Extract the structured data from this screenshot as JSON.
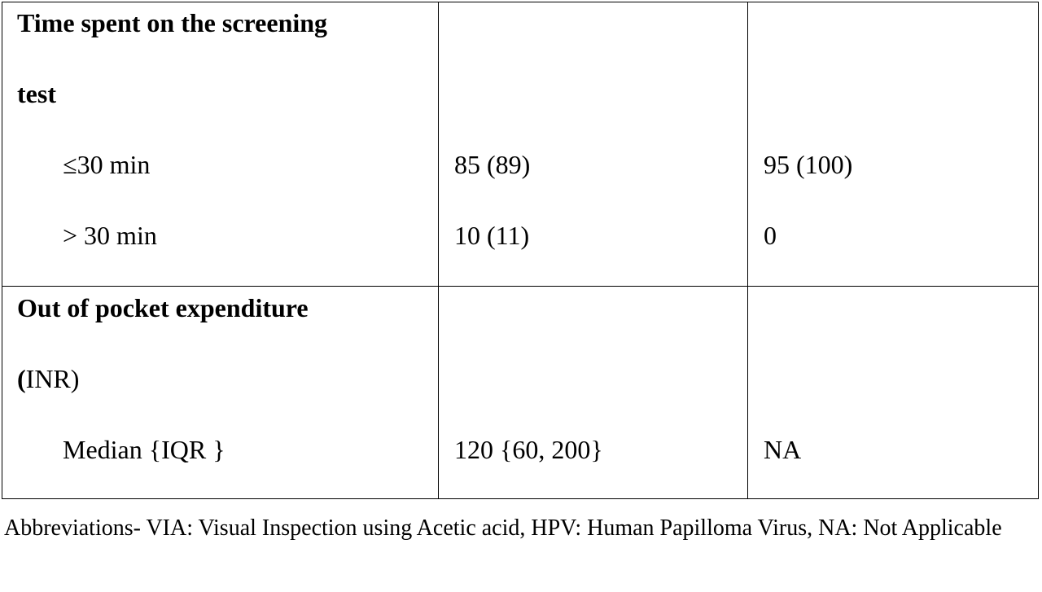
{
  "table": {
    "groups": [
      {
        "heading": [
          "Time spent on the screening",
          "test"
        ],
        "rows": [
          {
            "label": "≤30 min",
            "col2": "85 (89)",
            "col3": "95 (100)"
          },
          {
            "label": "> 30 min",
            "col2": "10 (11)",
            "col3": "0"
          }
        ]
      },
      {
        "heading_parts": {
          "line1": "Out of pocket expenditure",
          "line2_bold": "(",
          "line2": "INR)"
        },
        "rows": [
          {
            "label": "Median {IQR }",
            "col2": "120 {60, 200}",
            "col3": "NA"
          }
        ]
      }
    ]
  },
  "footnote": "Abbreviations- VIA: Visual Inspection using Acetic acid, HPV: Human Papilloma Virus, NA: Not Applicable"
}
